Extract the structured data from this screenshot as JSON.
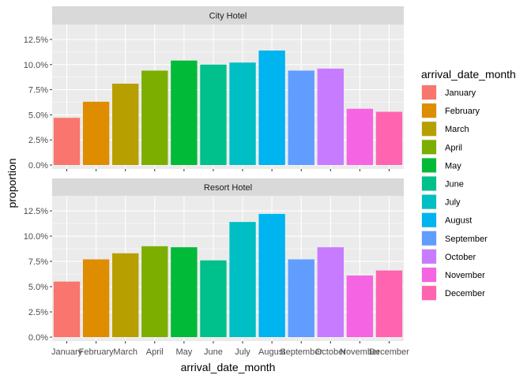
{
  "chart_data": {
    "type": "bar",
    "xlabel": "arrival_date_month",
    "ylabel": "proportion",
    "categories": [
      "January",
      "February",
      "March",
      "April",
      "May",
      "June",
      "July",
      "August",
      "September",
      "October",
      "November",
      "December"
    ],
    "y_ticks": [
      "0.0%",
      "2.5%",
      "5.0%",
      "7.5%",
      "10.0%",
      "12.5%"
    ],
    "ylim": [
      0,
      0.136
    ],
    "legend": {
      "title": "arrival_date_month",
      "position": "right",
      "colors": [
        "#F8766D",
        "#DE8C00",
        "#B79F00",
        "#7CAE00",
        "#00BA38",
        "#00C08B",
        "#00BFC4",
        "#00B4F0",
        "#619CFF",
        "#C77CFF",
        "#F564E3",
        "#FF64B0"
      ]
    },
    "panels": [
      {
        "title": "City Hotel",
        "values": [
          0.047,
          0.063,
          0.081,
          0.094,
          0.104,
          0.1,
          0.102,
          0.114,
          0.094,
          0.096,
          0.056,
          0.053
        ]
      },
      {
        "title": "Resort Hotel",
        "values": [
          0.055,
          0.077,
          0.083,
          0.09,
          0.089,
          0.076,
          0.114,
          0.122,
          0.077,
          0.089,
          0.061,
          0.066
        ]
      }
    ]
  }
}
